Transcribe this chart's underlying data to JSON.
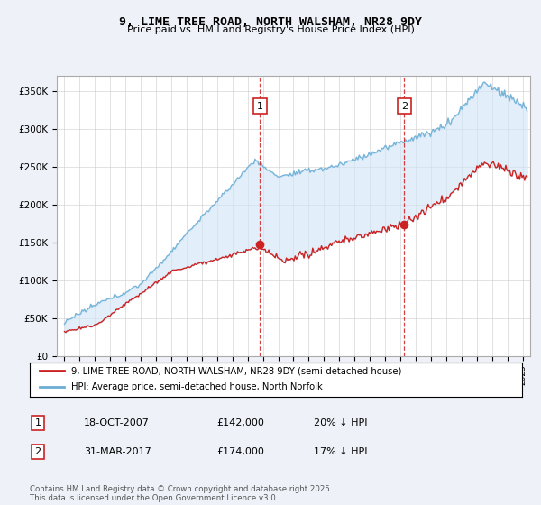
{
  "title": "9, LIME TREE ROAD, NORTH WALSHAM, NR28 9DY",
  "subtitle": "Price paid vs. HM Land Registry's House Price Index (HPI)",
  "ylabel_ticks": [
    "£0",
    "£50K",
    "£100K",
    "£150K",
    "£200K",
    "£250K",
    "£300K",
    "£350K"
  ],
  "ylim": [
    0,
    370000
  ],
  "xlim_start": 1994.5,
  "xlim_end": 2025.5,
  "hpi_color": "#6baed6",
  "price_color": "#cc2222",
  "vline_color": "#cc2222",
  "marker1_x": 2007.8,
  "marker2_x": 2017.25,
  "marker1_y": 142000,
  "marker2_y": 174000,
  "legend_entry1": "9, LIME TREE ROAD, NORTH WALSHAM, NR28 9DY (semi-detached house)",
  "legend_entry2": "HPI: Average price, semi-detached house, North Norfolk",
  "table_row1_num": "1",
  "table_row1_date": "18-OCT-2007",
  "table_row1_price": "£142,000",
  "table_row1_hpi": "20% ↓ HPI",
  "table_row2_num": "2",
  "table_row2_date": "31-MAR-2017",
  "table_row2_price": "£174,000",
  "table_row2_hpi": "17% ↓ HPI",
  "footer": "Contains HM Land Registry data © Crown copyright and database right 2025.\nThis data is licensed under the Open Government Licence v3.0.",
  "background_color": "#eef2f8",
  "plot_bg_color": "#ffffff",
  "grid_color": "#cccccc",
  "fill_color": "#d0e4f5"
}
